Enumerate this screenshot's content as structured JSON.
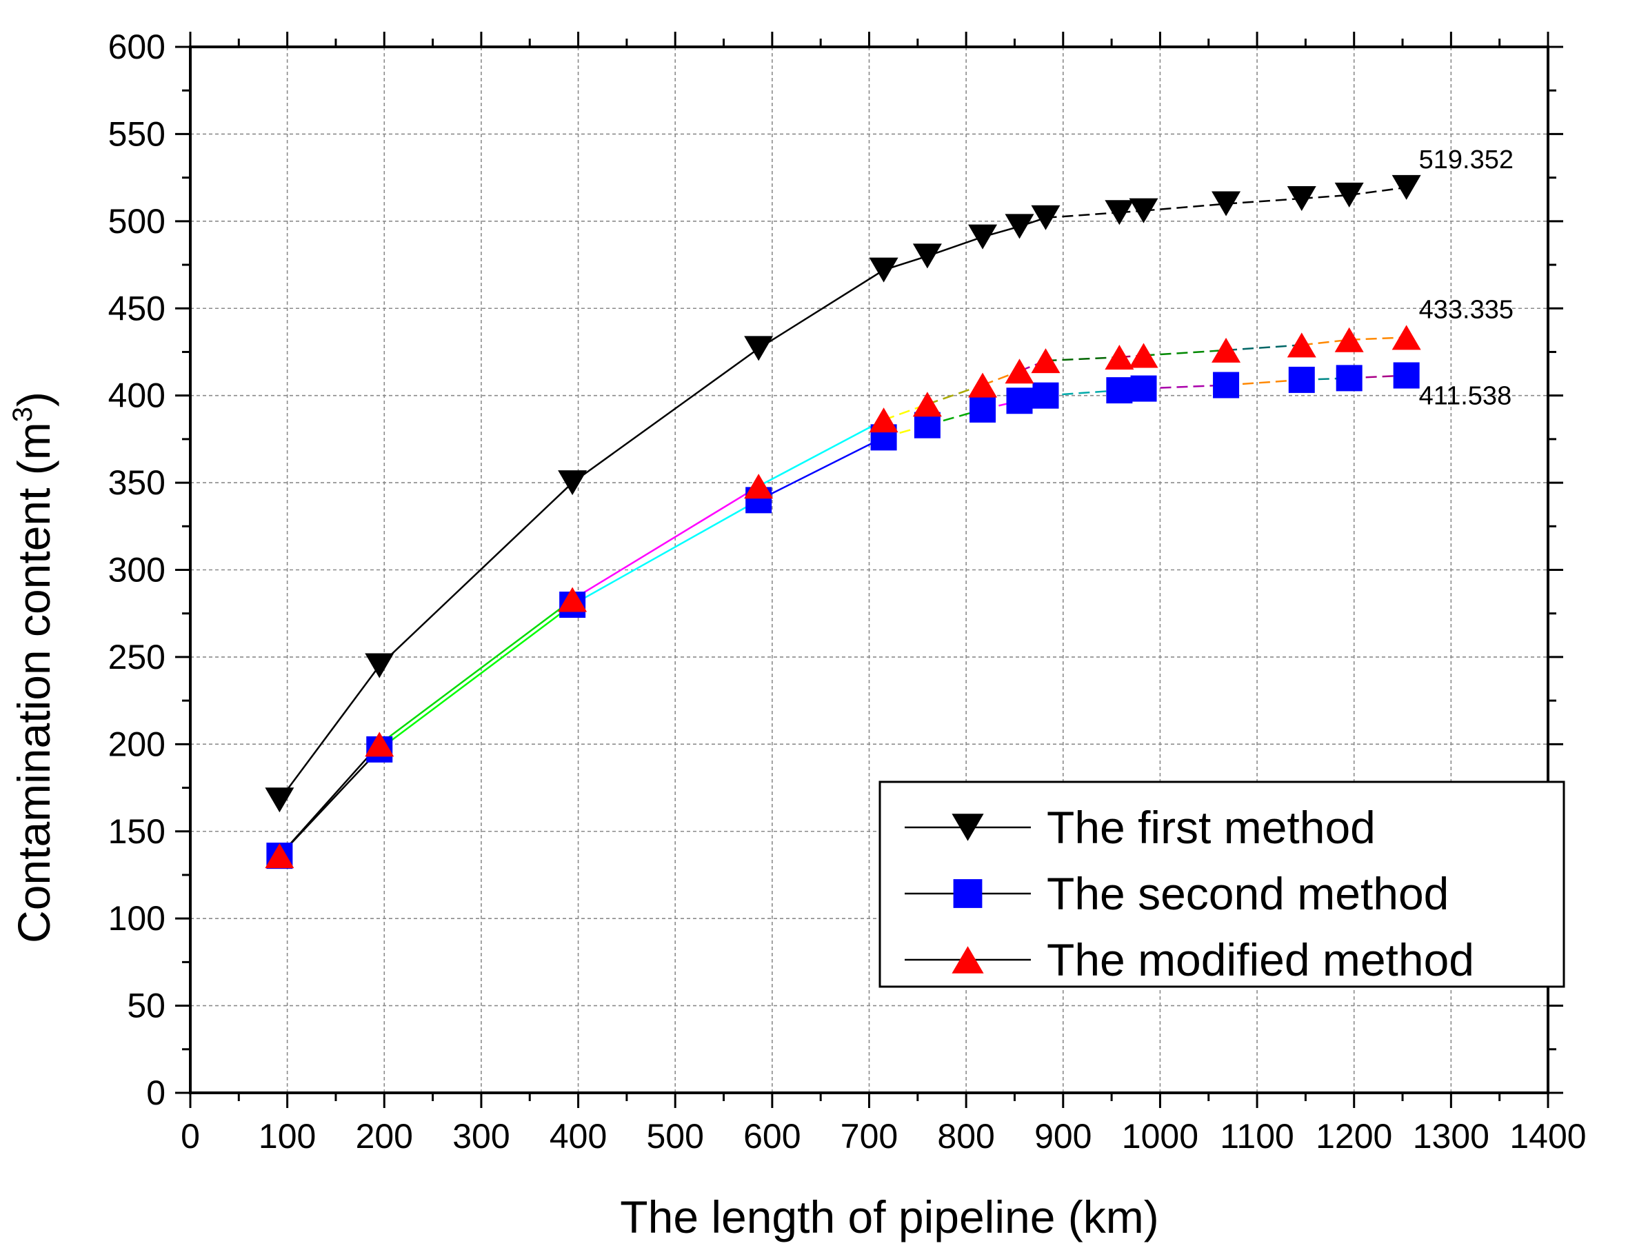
{
  "chart_data": {
    "type": "line",
    "title": "",
    "xlabel": "The length of pipeline (km)",
    "ylabel": "Contamination content (m",
    "ylabel_sup": "3",
    "ylabel_close": ")",
    "xlim": [
      0,
      1400
    ],
    "ylim": [
      0,
      600
    ],
    "xticks": [
      0,
      100,
      200,
      300,
      400,
      500,
      600,
      700,
      800,
      900,
      1000,
      1100,
      1200,
      1300,
      1400
    ],
    "yticks": [
      0,
      50,
      100,
      150,
      200,
      250,
      300,
      350,
      400,
      450,
      500,
      550,
      600
    ],
    "grid": true,
    "legend_position": "bottom-right",
    "x": [
      92,
      195,
      394,
      586,
      715,
      760,
      817,
      855,
      882,
      958,
      983,
      1068,
      1146,
      1195,
      1254
    ],
    "series": [
      {
        "name": "The first method",
        "marker": "triangle-down",
        "color": "#000000",
        "values": [
          168,
          245,
          350,
          427,
          472,
          480,
          491,
          497,
          502,
          505,
          506,
          510,
          513,
          515,
          519.352
        ]
      },
      {
        "name": "The second method",
        "marker": "square",
        "color": "#0000ff",
        "values": [
          136,
          197,
          280,
          340,
          376,
          383,
          392,
          397,
          400,
          403,
          404,
          406,
          409,
          410,
          411.538
        ]
      },
      {
        "name": "The modified method",
        "marker": "triangle-up",
        "color": "#ff0000",
        "values": [
          136,
          200,
          283,
          348,
          386,
          395,
          406,
          414,
          420,
          422,
          423,
          426,
          429,
          432,
          433.335
        ]
      }
    ],
    "annotations": [
      {
        "text": "519.352",
        "series": 0
      },
      {
        "text": "433.335",
        "series": 2
      },
      {
        "text": "411.538",
        "series": 1
      }
    ],
    "segment_colors": {
      "first": [
        "#000000"
      ],
      "second": [
        "#000000",
        "#00ff00",
        "#00ffff",
        "#0000ff",
        "#ffff00",
        "#00aa00",
        "#ff00ff",
        "#aaaa00",
        "#00aaaa",
        "#000088",
        "#aa00aa",
        "#ff8800",
        "#008888",
        "#aa0088"
      ],
      "modified": [
        "#000000",
        "#00dd00",
        "#ff00ff",
        "#00ffff",
        "#ffff00",
        "#aaaa00",
        "#ff8800",
        "#aa00aa",
        "#006600",
        "#aa0066",
        "#008800",
        "#006666",
        "#ff8800",
        "#ff8800"
      ]
    }
  }
}
